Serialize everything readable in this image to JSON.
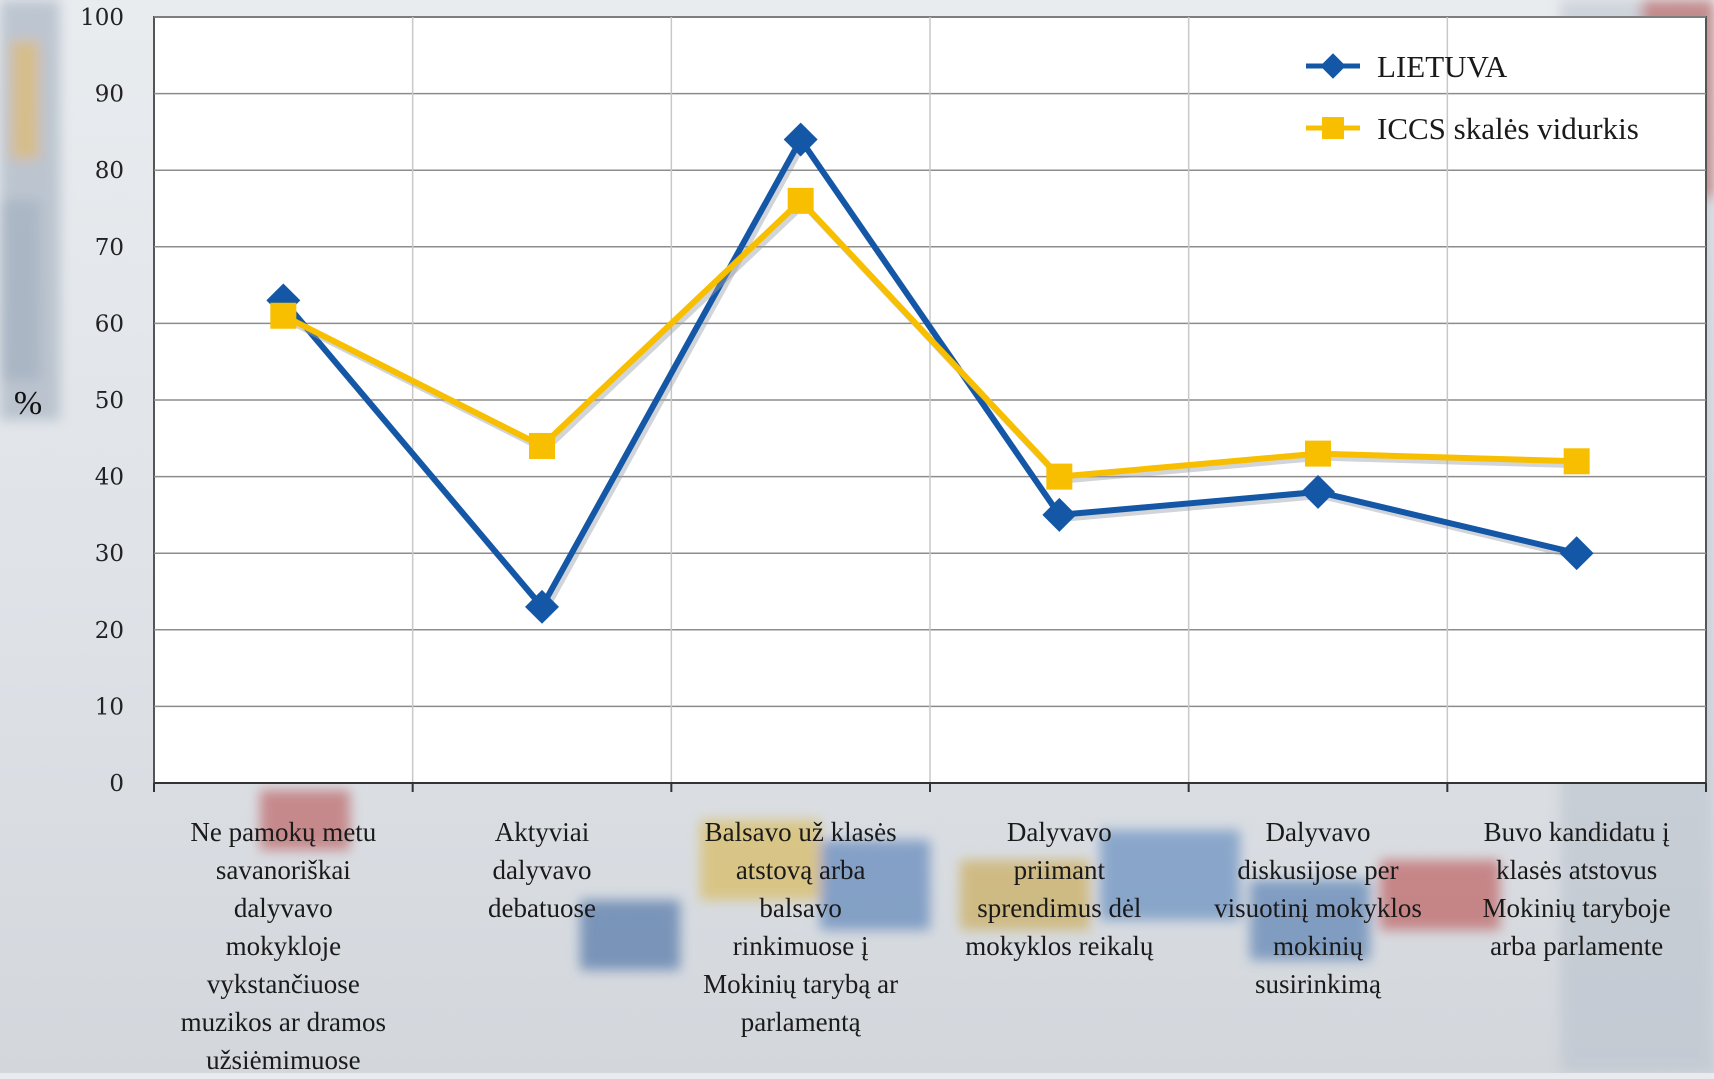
{
  "colors": {
    "lietuva": "#1357a6",
    "iccs": "#f7bf00",
    "grid": "#8c8c8c",
    "plot_bg": "#ffffff"
  },
  "chart_data": {
    "type": "line",
    "title": "",
    "xlabel": "",
    "ylabel": "%",
    "ylim": [
      0,
      100
    ],
    "yticks": [
      0,
      10,
      20,
      30,
      40,
      50,
      60,
      70,
      80,
      90,
      100
    ],
    "grid": true,
    "legend_position": "top-right",
    "categories": [
      "Ne pamokų metu savanoriškai dalyvavo mokykloje vykstančiuose muzikos ar dramos užsiėmimuose",
      "Aktyviai dalyvavo debatuose",
      "Balsavo už klasės atstovą arba balsavo rinkimuose į Mokinių tarybą ar parlamentą",
      "Dalyvavo priimant sprendimus dėl mokyklos reikalų",
      "Dalyvavo diskusijose per visuotinį mokyklos mokinių susirinkimą",
      "Buvo kandidatu į klasės atstovus Mokinių taryboje arba parlamente"
    ],
    "category_lines": [
      [
        "Ne pamokų metu",
        "savanoriškai",
        "dalyvavo",
        "mokykloje",
        "vykstančiuose",
        "muzikos ar dramos",
        "užsiėmimuose"
      ],
      [
        "Aktyviai",
        "dalyvavo",
        "debatuose"
      ],
      [
        "Balsavo už klasės",
        "atstovą arba",
        "balsavo",
        "rinkimuose į",
        "Mokinių tarybą ar",
        "parlamentą"
      ],
      [
        "Dalyvavo",
        "priimant",
        "sprendimus dėl",
        "mokyklos reikalų"
      ],
      [
        "Dalyvavo",
        "diskusijose per",
        "visuotinį mokyklos",
        "mokinių",
        "susirinkimą"
      ],
      [
        "Buvo kandidatu į",
        "klasės atstovus",
        "Mokinių taryboje",
        "arba parlamente"
      ]
    ],
    "series": [
      {
        "name": "LIETUVA",
        "values": [
          63,
          23,
          84,
          35,
          38,
          30
        ],
        "color": "#1357a6",
        "marker": "diamond"
      },
      {
        "name": "ICCS skalės vidurkis",
        "values": [
          61,
          44,
          76,
          40,
          43,
          42
        ],
        "color": "#f7bf00",
        "marker": "square"
      }
    ]
  }
}
